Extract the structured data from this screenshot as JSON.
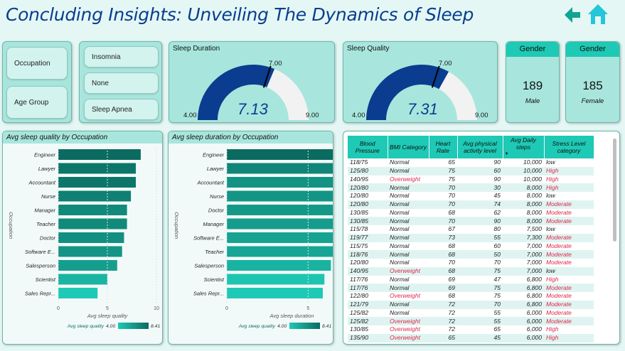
{
  "header": {
    "title": "Concluding Insights: Unveiling The Dynamics of Sleep"
  },
  "slicers": {
    "fields": [
      "Occupation",
      "Age Group"
    ],
    "options": [
      "Insomnia",
      "None",
      "Sleep Apnea"
    ]
  },
  "gauges": {
    "duration": {
      "title": "Sleep Duration",
      "value": "7.13",
      "min": "4.00",
      "max": "9.00",
      "target": "7.00",
      "fill_fraction": 0.626
    },
    "quality": {
      "title": "Sleep Quality",
      "value": "7.31",
      "min": "4.00",
      "max": "9.00",
      "target": "7.00",
      "fill_fraction": 0.662
    }
  },
  "gender": [
    {
      "header": "Gender",
      "count": "189",
      "label": "Male"
    },
    {
      "header": "Gender",
      "count": "185",
      "label": "Female"
    }
  ],
  "colors": {
    "accent": "#1ec9b5",
    "gauge_fill": "#0a3d8f",
    "bar_dark": "#0b6b60",
    "bar_light": "#1ec9b5",
    "alert": "#e0284a"
  },
  "icons": {
    "back": "back-arrow-icon",
    "home": "home-icon"
  },
  "chart_data": [
    {
      "type": "bar",
      "title": "Avg sleep quality by Occupation",
      "categories": [
        "Engineer",
        "Lawyer",
        "Accountant",
        "Nurse",
        "Manager",
        "Teacher",
        "Doctor",
        "Software E...",
        "Salesperson",
        "Scientist",
        "Sales Repr..."
      ],
      "values": [
        8.4,
        7.9,
        7.9,
        7.4,
        7.0,
        7.0,
        6.7,
        6.5,
        6.0,
        5.0,
        4.0
      ],
      "xlabel": "Avg sleep quality",
      "ylabel": "Occupation",
      "xlim": [
        0,
        10
      ],
      "xticks": [
        "0",
        "5",
        "10"
      ],
      "legend": {
        "label": "Avg sleep quality",
        "min": "4.00",
        "max": "8.41"
      }
    },
    {
      "type": "bar",
      "title": "Avg sleep duration by Occupation",
      "categories": [
        "Engineer",
        "Lawyer",
        "Accountant",
        "Nurse",
        "Doctor",
        "Manager",
        "Software E...",
        "Teacher",
        "Salesperson",
        "Scientist",
        "Sales Repr..."
      ],
      "values": [
        7.99,
        7.41,
        7.11,
        7.06,
        6.97,
        6.9,
        6.75,
        6.69,
        6.4,
        6.0,
        5.9
      ],
      "xlabel": "Avg sleep duration",
      "ylabel": "Occupation",
      "xlim": [
        0,
        8
      ],
      "xticks": [
        "0",
        "5"
      ],
      "legend": {
        "label": "Avg sleep quality",
        "min": "4.00",
        "max": "8.41"
      }
    }
  ],
  "table": {
    "columns": [
      "Blood Pressure",
      "BMI Category",
      "Heart Rate",
      "Avg physical activity level",
      "Avg Daily steps",
      "Stress Level category"
    ],
    "rows": [
      [
        "118/75",
        "Normal",
        "65",
        "90",
        "10,000",
        "low"
      ],
      [
        "125/80",
        "Normal",
        "75",
        "60",
        "10,000",
        "High"
      ],
      [
        "140/95",
        "Overweight",
        "75",
        "90",
        "10,000",
        "High"
      ],
      [
        "120/80",
        "Normal",
        "70",
        "30",
        "8,000",
        "High"
      ],
      [
        "120/80",
        "Normal",
        "70",
        "45",
        "8,000",
        "low"
      ],
      [
        "120/80",
        "Normal",
        "70",
        "74",
        "8,000",
        "Moderate"
      ],
      [
        "130/85",
        "Normal",
        "68",
        "62",
        "8,000",
        "Moderate"
      ],
      [
        "130/85",
        "Normal",
        "70",
        "90",
        "8,000",
        "Moderate"
      ],
      [
        "115/78",
        "Normal",
        "67",
        "80",
        "7,500",
        "low"
      ],
      [
        "119/77",
        "Normal",
        "73",
        "55",
        "7,300",
        "Moderate"
      ],
      [
        "115/75",
        "Normal",
        "68",
        "60",
        "7,000",
        "Moderate"
      ],
      [
        "118/76",
        "Normal",
        "68",
        "50",
        "7,000",
        "Moderate"
      ],
      [
        "120/80",
        "Normal",
        "70",
        "70",
        "7,000",
        "Moderate"
      ],
      [
        "140/95",
        "Overweight",
        "68",
        "75",
        "7,000",
        "low"
      ],
      [
        "117/76",
        "Normal",
        "69",
        "47",
        "6,800",
        "High"
      ],
      [
        "117/76",
        "Normal",
        "69",
        "75",
        "6,800",
        "Moderate"
      ],
      [
        "122/80",
        "Overweight",
        "68",
        "75",
        "6,800",
        "Moderate"
      ],
      [
        "121/79",
        "Normal",
        "72",
        "70",
        "6,800",
        "Moderate"
      ],
      [
        "125/82",
        "Normal",
        "72",
        "55",
        "6,000",
        "Moderate"
      ],
      [
        "125/82",
        "Overweight",
        "72",
        "55",
        "6,000",
        "Moderate"
      ],
      [
        "130/85",
        "Overweight",
        "72",
        "65",
        "6,000",
        "High"
      ],
      [
        "135/90",
        "Overweight",
        "65",
        "45",
        "6,000",
        "High"
      ]
    ]
  }
}
